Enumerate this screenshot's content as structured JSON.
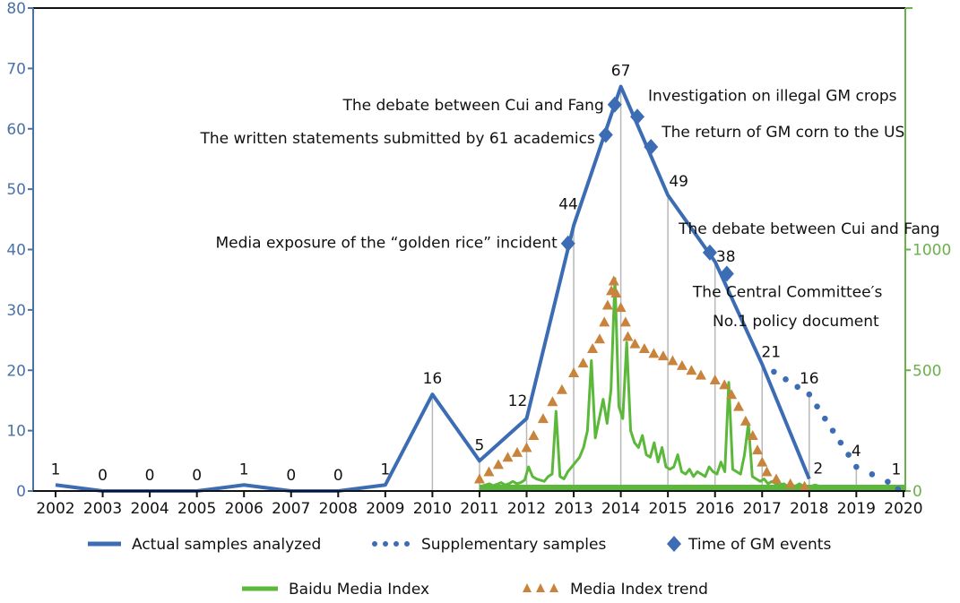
{
  "chart_data": {
    "type": "line",
    "x_ticks": [
      "2002",
      "2003",
      "2004",
      "2005",
      "2006",
      "2007",
      "2008",
      "2009",
      "2010",
      "2011",
      "2012",
      "2013",
      "2014",
      "2015",
      "2016",
      "2017",
      "2018",
      "2019",
      "2020"
    ],
    "y_left": {
      "range": [
        0,
        80
      ],
      "ticks": [
        0,
        10,
        20,
        30,
        40,
        50,
        60,
        70,
        80
      ]
    },
    "y_right": {
      "range": [
        0,
        2000
      ],
      "ticks": [
        0,
        500,
        1000
      ]
    },
    "grid": false,
    "legend_placement": "bottom",
    "colors": {
      "actual": "#3c6cb4",
      "supplementary": "#3c6cb4",
      "events": "#3c6cb4",
      "baidu": "#5cb83a",
      "trend": "#c8843c",
      "left_axis": "#4a72a8",
      "right_axis": "#6ab04c"
    },
    "series": [
      {
        "name": "Actual samples analyzed",
        "axis": "left",
        "style": "solid",
        "x": [
          2002,
          2003,
          2004,
          2005,
          2006,
          2007,
          2008,
          2009,
          2010,
          2011,
          2012,
          2013,
          2014,
          2015,
          2016,
          2017,
          2018
        ],
        "values": [
          1,
          0,
          0,
          0,
          1,
          0,
          0,
          1,
          16,
          5,
          12,
          44,
          67,
          49,
          38,
          21,
          2
        ]
      },
      {
        "name": "Supplementary samples",
        "axis": "left",
        "style": "dotted",
        "x": [
          2017,
          2018,
          2019,
          2020
        ],
        "values": [
          21,
          16,
          4,
          1
        ]
      },
      {
        "name": "Time of GM events",
        "axis": "left",
        "style": "diamond",
        "x": [
          2012.88,
          2013.68,
          2013.87,
          2014.35,
          2014.64,
          2015.89,
          2016.25
        ],
        "values": [
          41,
          59,
          64,
          62,
          57,
          39.5,
          36
        ]
      },
      {
        "name": "Baidu Media Index",
        "axis": "right",
        "style": "line",
        "start": 2011,
        "step": "month",
        "values": [
          20,
          25,
          30,
          22,
          28,
          35,
          25,
          30,
          40,
          30,
          35,
          45,
          100,
          60,
          50,
          45,
          40,
          60,
          70,
          330,
          60,
          50,
          80,
          100,
          120,
          140,
          180,
          250,
          540,
          220,
          300,
          380,
          280,
          420,
          880,
          350,
          300,
          615,
          250,
          200,
          180,
          230,
          150,
          140,
          200,
          120,
          180,
          100,
          90,
          100,
          150,
          80,
          70,
          90,
          60,
          80,
          70,
          60,
          100,
          80,
          70,
          120,
          80,
          450,
          90,
          80,
          70,
          150,
          280,
          60,
          50,
          40,
          50,
          30,
          40,
          30,
          25,
          30,
          20,
          25,
          20,
          30,
          20,
          20,
          20,
          25,
          20,
          20,
          18,
          20,
          15,
          15,
          15,
          15,
          15,
          15,
          15,
          15,
          15,
          15,
          15,
          15,
          15,
          15,
          15,
          15,
          15,
          15
        ]
      },
      {
        "name": "Media Index trend",
        "axis": "right",
        "style": "triangle",
        "x": [
          2011.0,
          2011.2,
          2011.4,
          2011.6,
          2011.8,
          2012.0,
          2012.15,
          2012.35,
          2012.55,
          2012.75,
          2013.0,
          2013.2,
          2013.4,
          2013.55,
          2013.65,
          2013.72,
          2013.8,
          2013.85,
          2013.9,
          2014.0,
          2014.1,
          2014.15,
          2014.3,
          2014.5,
          2014.7,
          2014.9,
          2015.1,
          2015.3,
          2015.5,
          2015.7,
          2016.0,
          2016.2,
          2016.35,
          2016.5,
          2016.65,
          2016.8,
          2016.9,
          2017.0,
          2017.1,
          2017.3,
          2017.6,
          2017.9
        ],
        "values": [
          50,
          80,
          110,
          140,
          160,
          180,
          230,
          300,
          370,
          420,
          490,
          530,
          590,
          630,
          700,
          770,
          830,
          870,
          820,
          760,
          700,
          640,
          610,
          590,
          570,
          560,
          540,
          520,
          500,
          480,
          460,
          440,
          400,
          350,
          290,
          230,
          170,
          120,
          80,
          50,
          30,
          20
        ]
      }
    ],
    "data_labels": [
      {
        "x": 2002,
        "y": 1,
        "text": "1"
      },
      {
        "x": 2003,
        "y": 0,
        "text": "0"
      },
      {
        "x": 2004,
        "y": 0,
        "text": "0"
      },
      {
        "x": 2005,
        "y": 0,
        "text": "0"
      },
      {
        "x": 2006,
        "y": 1,
        "text": "1"
      },
      {
        "x": 2007,
        "y": 0,
        "text": "0"
      },
      {
        "x": 2008,
        "y": 0,
        "text": "0"
      },
      {
        "x": 2009,
        "y": 1,
        "text": "1"
      },
      {
        "x": 2010,
        "y": 16,
        "text": "16"
      },
      {
        "x": 2011,
        "y": 5,
        "text": "5"
      },
      {
        "x": 2012,
        "y": 12,
        "text": "12"
      },
      {
        "x": 2013,
        "y": 44,
        "text": "44"
      },
      {
        "x": 2014,
        "y": 67,
        "text": "67"
      },
      {
        "x": 2015,
        "y": 49,
        "text": "49"
      },
      {
        "x": 2016,
        "y": 38,
        "text": "38"
      },
      {
        "x": 2017,
        "y": 21,
        "text": "21"
      },
      {
        "x": 2018,
        "y": 2,
        "text": "2"
      },
      {
        "x": 2018,
        "y": 16,
        "text": "16"
      },
      {
        "x": 2019,
        "y": 4,
        "text": "4"
      },
      {
        "x": 2020,
        "y": 1,
        "text": "1"
      }
    ],
    "annotations": [
      {
        "text": "The debate between Cui and Fang",
        "anchor": "end",
        "x": 2013.87,
        "y": 64
      },
      {
        "text": "Investigation on illegal GM crops",
        "anchor": "start",
        "x": 2014.35,
        "y": 65.5
      },
      {
        "text": "The written statements submitted by 61 academics",
        "anchor": "end",
        "x": 2013.68,
        "y": 58.5
      },
      {
        "text": "The return of GM corn to the US",
        "anchor": "start",
        "x": 2014.64,
        "y": 59.5
      },
      {
        "text": "Media exposure of the “golden rice” incident",
        "anchor": "end",
        "x": 2012.88,
        "y": 41.2
      },
      {
        "text": "The debate between Cui and Fang",
        "anchor": "start",
        "x": 2015.0,
        "y": 43.5
      },
      {
        "text": "The Central Committee′s",
        "anchor": "start",
        "x": 2015.3,
        "y": 33
      },
      {
        "text": "No.1 policy document",
        "anchor": "start",
        "x": 2015.72,
        "y": 28.2
      }
    ]
  }
}
